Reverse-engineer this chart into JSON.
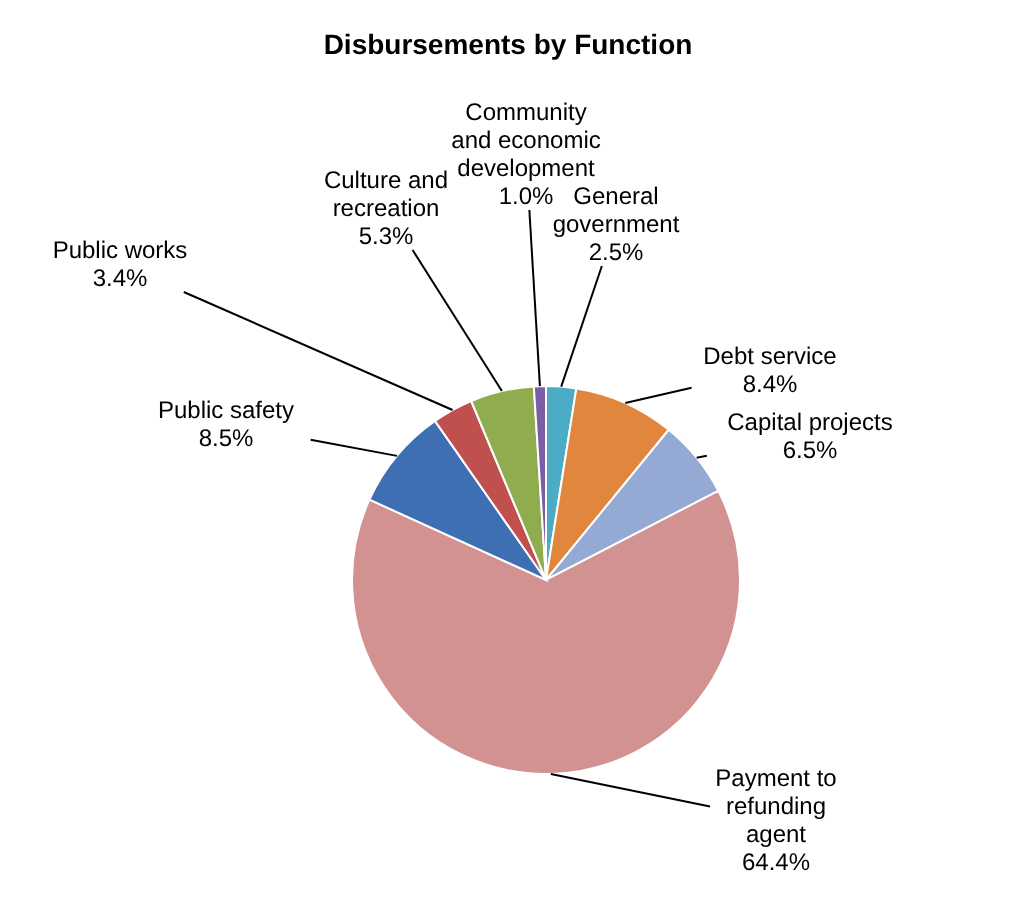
{
  "chart_data": {
    "type": "pie",
    "title": "Disbursements by Function",
    "categories": [
      "General government",
      "Debt service",
      "Capital projects",
      "Payment to refunding agent",
      "Public safety",
      "Public works",
      "Culture and recreation",
      "Community and economic development"
    ],
    "values": [
      2.5,
      8.4,
      6.5,
      64.4,
      8.5,
      3.4,
      5.3,
      1.0
    ],
    "value_labels": [
      "2.5%",
      "8.4%",
      "6.5%",
      "64.4%",
      "8.5%",
      "3.4%",
      "5.3%",
      "1.0%"
    ],
    "colors": [
      "#4bacc6",
      "#e0873d",
      "#94a9d4",
      "#d39292",
      "#3f6fb3",
      "#c0504d",
      "#8fad4f",
      "#7b5ea7"
    ]
  }
}
